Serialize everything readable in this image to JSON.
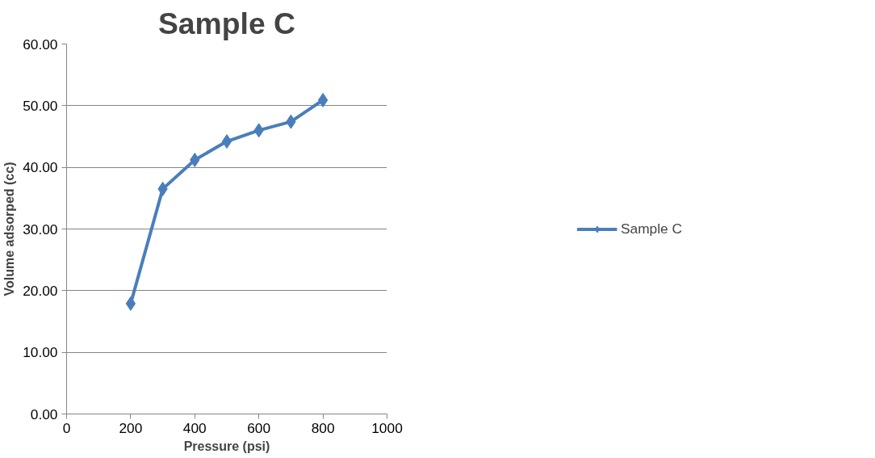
{
  "chart_data": {
    "type": "line",
    "title": "Sample C",
    "xlabel": "Pressure (psi)",
    "ylabel": "Volume adsorped (cc)",
    "x": [
      200,
      300,
      400,
      500,
      600,
      700,
      800
    ],
    "series": [
      {
        "name": "Sample C",
        "color": "#4a7ebb",
        "values": [
          17.9,
          36.5,
          41.2,
          44.2,
          46.0,
          47.4,
          50.9
        ]
      }
    ],
    "xlim": [
      0,
      1000
    ],
    "xticks": [
      0,
      200,
      400,
      600,
      800,
      1000
    ],
    "ylim": [
      0,
      60
    ],
    "yticks": [
      {
        "value": 0,
        "label": "0.00"
      },
      {
        "value": 10,
        "label": "10.00"
      },
      {
        "value": 20,
        "label": "20.00"
      },
      {
        "value": 30,
        "label": "30.00"
      },
      {
        "value": 40,
        "label": "40.00"
      },
      {
        "value": 50,
        "label": "50.00"
      },
      {
        "value": 60,
        "label": "60.00"
      }
    ],
    "grid": "y",
    "legend": "right",
    "marker": "diamond",
    "line_style": "solid"
  }
}
